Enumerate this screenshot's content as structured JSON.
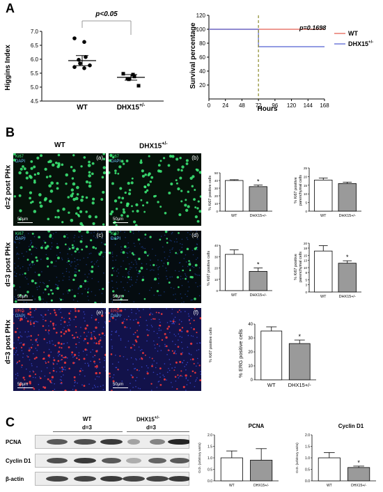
{
  "panels": {
    "a": "A",
    "b": "B",
    "c": "C"
  },
  "higgins": {
    "ylabel": "Higgins Index",
    "yticks": [
      "4.5",
      "5.0",
      "5.5",
      "6.0",
      "6.5",
      "7.0"
    ],
    "categories": [
      "WT",
      "DHX15+/-"
    ],
    "cat_wt": "WT",
    "cat_dhx_base": "DHX15",
    "cat_dhx_sup": "+/-",
    "pvalue": "p<0.05"
  },
  "survival": {
    "ylabel": "Survival percentage",
    "xlabel": "Hours",
    "yticks": [
      "20",
      "40",
      "60",
      "80",
      "100",
      "120"
    ],
    "xticks": [
      "0",
      "24",
      "48",
      "72",
      "96",
      "120",
      "144",
      "168"
    ],
    "pvalue": "p=0.1698",
    "legend_wt": "WT",
    "legend_dhx_base": "DHX15",
    "legend_dhx_sup": "+/-"
  },
  "micro": {
    "col_wt": "WT",
    "col_dhx_base": "DHX15",
    "col_dhx_sup": "+/-",
    "row1": "d=2 post PHx",
    "row2": "d=3 post PHx",
    "row3": "d=3 post PHx",
    "ki67": "Ki67",
    "dapi": "DAPI",
    "erg": "ERG",
    "scale": "50µm",
    "tags": [
      "(a)",
      "(b)",
      "(c)",
      "(d)",
      "(e)",
      "(f)"
    ]
  },
  "small_bars": {
    "ki67_cells_label": "% Ki67 positive cells",
    "ki67_par_label_1": "% Ki67 positive",
    "ki67_par_label_2": "parenchymal cells",
    "erg_label": "% ERG positive cells",
    "cat_wt": "WT",
    "cat_dhx": "DHX15+/-",
    "star": "*",
    "yticks_d2_cells": [
      "0",
      "10",
      "20",
      "30",
      "40",
      "50"
    ],
    "yticks_d2_par": [
      "0",
      "5",
      "10",
      "15",
      "20",
      "25"
    ],
    "yticks_d3_cells": [
      "0",
      "10",
      "20",
      "30",
      "40"
    ],
    "yticks_d3_par": [
      "0",
      "3",
      "5",
      "8",
      "10",
      "13",
      "15",
      "18",
      "20"
    ],
    "yticks_erg": [
      "0",
      "10",
      "20",
      "30",
      "40"
    ]
  },
  "western": {
    "wt_label": "WT",
    "wt_day": "d=3",
    "dhx_base": "DHX15",
    "dhx_sup": "+/-",
    "dhx_day": "d=3",
    "bands": [
      "PCNA",
      "Cyclin D1",
      "β-actin"
    ],
    "pcna_title": "PCNA",
    "cyclin_title": "Cyclin D1",
    "od_label": "O.D. (arbitrary units)",
    "yticks_pcna": [
      "0.0",
      "0.5",
      "1.0",
      "1.5",
      "2.0"
    ],
    "yticks_cyclin": [
      "0.0",
      "0.5",
      "1.0",
      "1.5",
      "2.0"
    ]
  },
  "chart_data": [
    {
      "type": "scatter",
      "ylabel": "Higgins Index",
      "categories": [
        "WT",
        "DHX15+/-"
      ],
      "ylim": [
        4.5,
        7.0
      ],
      "series": [
        {
          "category": "WT",
          "points": [
            6.75,
            6.62,
            6.08,
            5.98,
            5.85,
            5.78,
            5.72,
            5.68
          ],
          "mean": 5.95,
          "sem": 0.18
        },
        {
          "category": "DHX15+/-",
          "points": [
            5.48,
            5.45,
            5.38,
            5.3,
            5.28,
            5.05
          ],
          "mean": 5.35,
          "sem": 0.1
        }
      ],
      "annotation": "p<0.05"
    },
    {
      "type": "line",
      "xlabel": "Hours",
      "ylabel": "Survival percentage",
      "xlim": [
        0,
        168
      ],
      "ylim": [
        0,
        120
      ],
      "series": [
        {
          "name": "WT",
          "color": "#e8796e",
          "x": [
            0,
            168
          ],
          "y": [
            100,
            100
          ]
        },
        {
          "name": "DHX15+/-",
          "color": "#6f7ad9",
          "x": [
            0,
            72,
            72,
            168
          ],
          "y": [
            100,
            100,
            75,
            75
          ]
        }
      ],
      "annotation": "p=0.1698",
      "marker_x": 72
    },
    {
      "type": "bar",
      "ylabel": "% Ki67 positive cells",
      "categories": [
        "WT",
        "DHX15+/-"
      ],
      "values": [
        40,
        32
      ],
      "errors": [
        1,
        2
      ],
      "ylim": [
        0,
        50
      ],
      "significance": [
        "",
        "*"
      ]
    },
    {
      "type": "bar",
      "ylabel": "% Ki67 positive parenchymal cells",
      "categories": [
        "WT",
        "DHX15+/-"
      ],
      "values": [
        18,
        16
      ],
      "errors": [
        1.2,
        0.8
      ],
      "ylim": [
        0,
        25
      ],
      "significance": [
        "",
        ""
      ]
    },
    {
      "type": "bar",
      "ylabel": "% Ki67 positive cells",
      "categories": [
        "WT",
        "DHX15+/-"
      ],
      "values": [
        32,
        17
      ],
      "errors": [
        4,
        3
      ],
      "ylim": [
        0,
        40
      ],
      "significance": [
        "",
        "*"
      ]
    },
    {
      "type": "bar",
      "ylabel": "% Ki67 positive parenchymal cells",
      "categories": [
        "WT",
        "DHX15+/-"
      ],
      "values": [
        16.8,
        11.8
      ],
      "errors": [
        2.2,
        1
      ],
      "ylim": [
        0,
        20
      ],
      "significance": [
        "",
        "*"
      ]
    },
    {
      "type": "bar",
      "ylabel": "% ERG positive cells",
      "categories": [
        "WT",
        "DHX15+/-"
      ],
      "values": [
        35,
        26
      ],
      "errors": [
        3,
        2.5
      ],
      "ylim": [
        0,
        40
      ],
      "significance": [
        "",
        "*"
      ]
    },
    {
      "type": "bar",
      "title": "PCNA",
      "ylabel": "O.D. (arbitrary units)",
      "categories": [
        "WT",
        "DHX15+/-"
      ],
      "values": [
        1.0,
        0.9
      ],
      "errors": [
        0.3,
        0.5
      ],
      "ylim": [
        0,
        2.0
      ],
      "significance": [
        "",
        ""
      ]
    },
    {
      "type": "bar",
      "title": "Cyclin D1",
      "ylabel": "O.D. (arbitrary units)",
      "categories": [
        "WT",
        "DHX15+/-"
      ],
      "values": [
        1.0,
        0.58
      ],
      "errors": [
        0.23,
        0.06
      ],
      "ylim": [
        0,
        2.0
      ],
      "significance": [
        "",
        "*"
      ]
    }
  ]
}
